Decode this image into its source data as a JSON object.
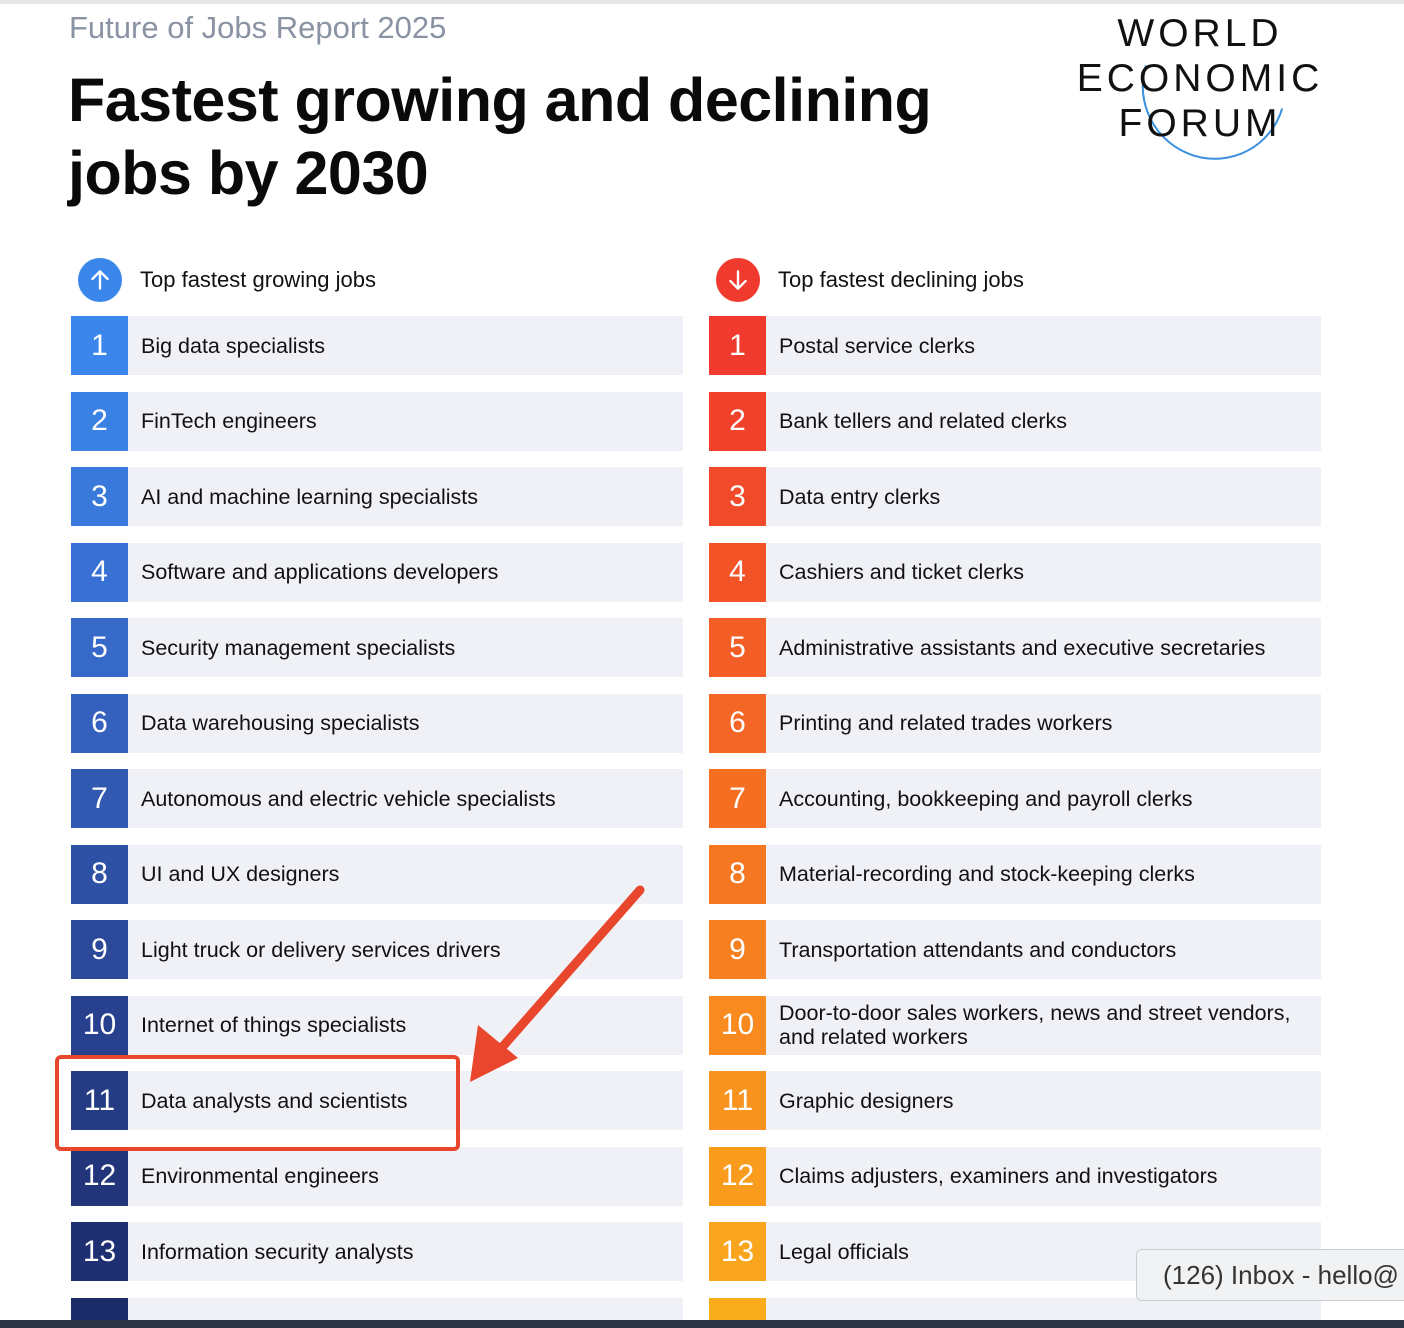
{
  "header": {
    "report": "Future of Jobs Report 2025",
    "title_line1": "Fastest growing and declining",
    "title_line2": "jobs by 2030",
    "logo": [
      "WORLD",
      "ECONOMIC",
      "FORUM"
    ]
  },
  "growing": {
    "heading": "Top fastest growing jobs",
    "icon": "arrow-up-icon",
    "items": [
      {
        "n": "1",
        "label": "Big data specialists"
      },
      {
        "n": "2",
        "label": "FinTech engineers"
      },
      {
        "n": "3",
        "label": "AI and machine learning specialists"
      },
      {
        "n": "4",
        "label": "Software and applications developers"
      },
      {
        "n": "5",
        "label": "Security management specialists"
      },
      {
        "n": "6",
        "label": "Data warehousing specialists"
      },
      {
        "n": "7",
        "label": "Autonomous and electric vehicle specialists"
      },
      {
        "n": "8",
        "label": "UI and UX designers"
      },
      {
        "n": "9",
        "label": "Light truck or delivery services drivers"
      },
      {
        "n": "10",
        "label": "Internet of things specialists"
      },
      {
        "n": "11",
        "label": "Data analysts and scientists"
      },
      {
        "n": "12",
        "label": "Environmental engineers"
      },
      {
        "n": "13",
        "label": "Information security analysts"
      }
    ],
    "colors": [
      "#3b86ea",
      "#3a81e4",
      "#3a79dc",
      "#3871d3",
      "#3669c8",
      "#3461bd",
      "#3259b1",
      "#2f51a5",
      "#2b4899",
      "#28418e",
      "#253b84",
      "#22357b",
      "#1f3072"
    ]
  },
  "declining": {
    "heading": "Top fastest declining jobs",
    "icon": "arrow-down-icon",
    "items": [
      {
        "n": "1",
        "label": "Postal service clerks"
      },
      {
        "n": "2",
        "label": "Bank tellers and related clerks"
      },
      {
        "n": "3",
        "label": "Data entry clerks"
      },
      {
        "n": "4",
        "label": "Cashiers and ticket clerks"
      },
      {
        "n": "5",
        "label": "Administrative assistants and executive secretaries"
      },
      {
        "n": "6",
        "label": "Printing and related trades workers"
      },
      {
        "n": "7",
        "label": "Accounting, bookkeeping and payroll clerks"
      },
      {
        "n": "8",
        "label": "Material-recording and stock-keeping clerks"
      },
      {
        "n": "9",
        "label": "Transportation attendants and conductors"
      },
      {
        "n": "10",
        "label": "Door-to-door sales workers, news and street vendors, and related workers"
      },
      {
        "n": "11",
        "label": "Graphic designers"
      },
      {
        "n": "12",
        "label": "Claims adjusters, examiners and investigators"
      },
      {
        "n": "13",
        "label": "Legal officials"
      }
    ],
    "colors": [
      "#ef3a2d",
      "#f0412b",
      "#f14a2a",
      "#f25428",
      "#f35d26",
      "#f46625",
      "#f56f23",
      "#f67722",
      "#f78021",
      "#f88a20",
      "#f8931f",
      "#f99c1e",
      "#f9a51d"
    ]
  },
  "tooltip": "(126) Inbox - hello@"
}
